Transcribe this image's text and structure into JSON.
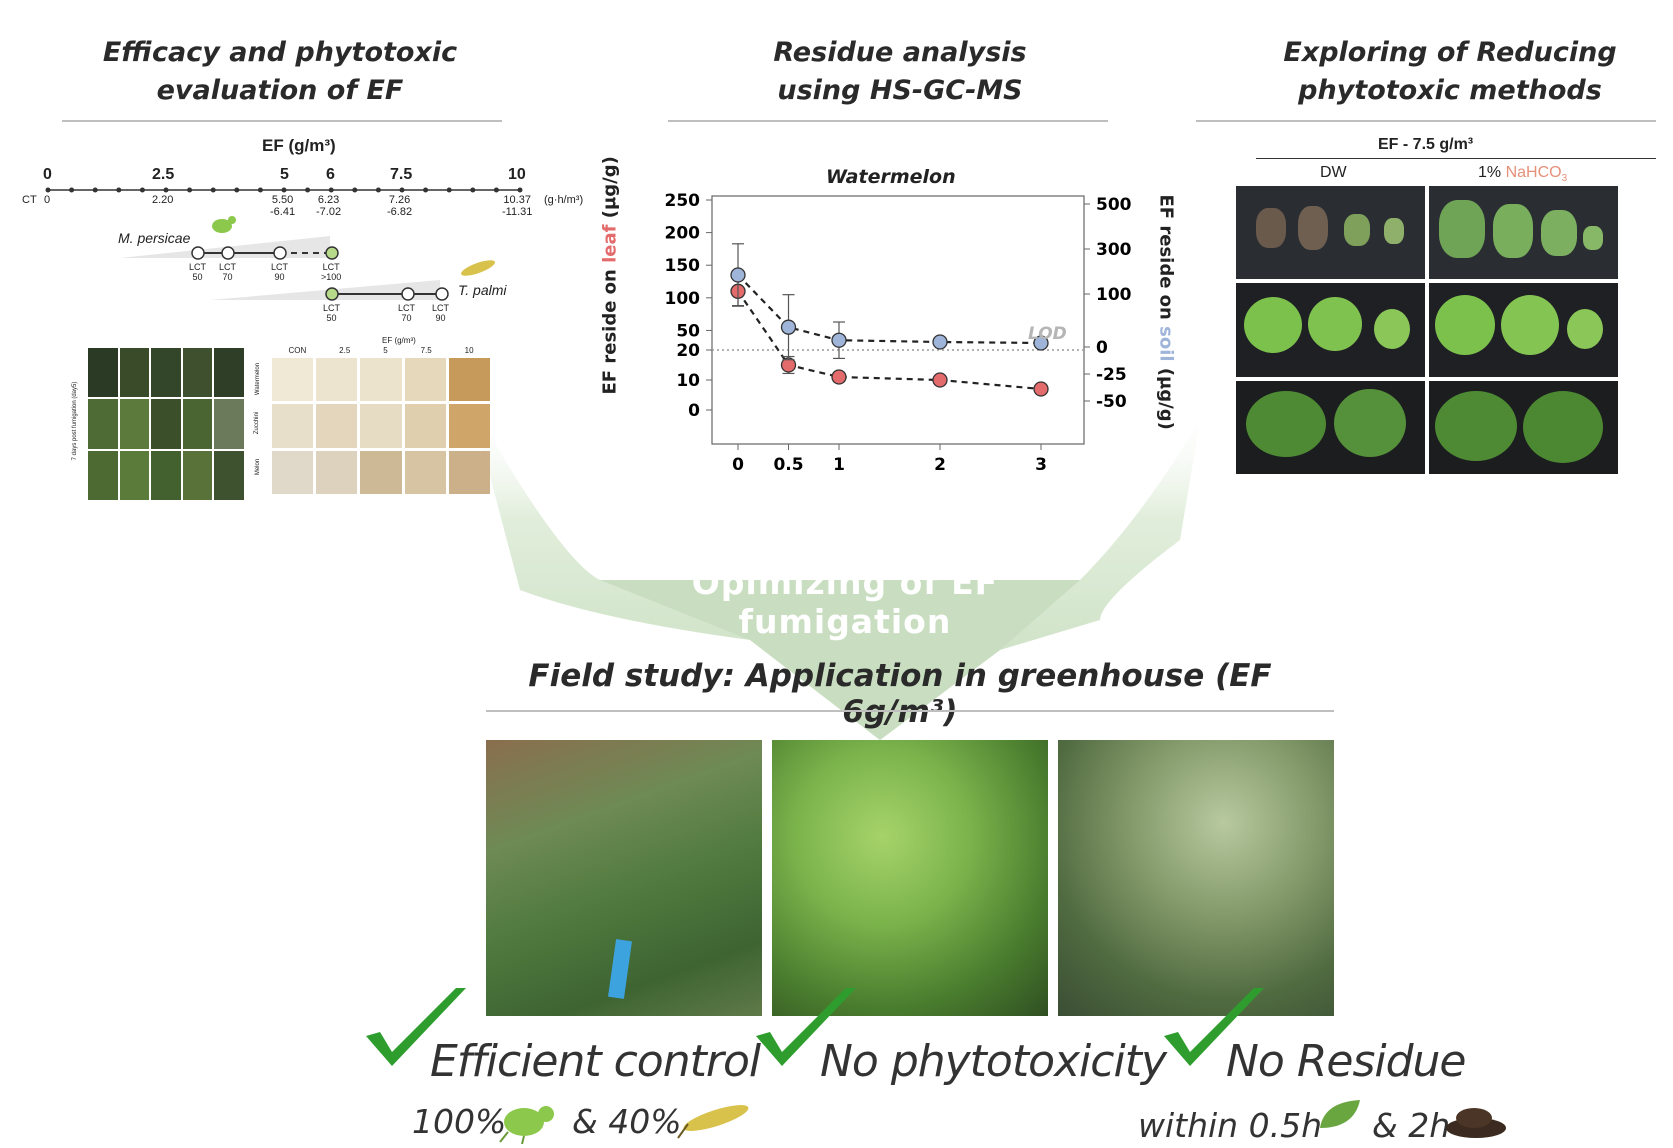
{
  "sections": {
    "efficacy": {
      "line1": "Efficacy and phytotoxic",
      "line2": "evaluation of EF"
    },
    "residue": {
      "line1": "Residue analysis",
      "line2": "using HS-GC-MS"
    },
    "reducing": {
      "line1": "Exploring of Reducing",
      "line2": "phytotoxic methods"
    }
  },
  "dose_scale": {
    "title": "EF (g/m³)",
    "doses": [
      "0",
      "2.5",
      "5",
      "6",
      "7.5",
      "10"
    ],
    "ct_label": "CT",
    "ct_unit": "(g·h/m³)",
    "ct_values": [
      {
        "top": "0",
        "bottom": ""
      },
      {
        "top": "2.20",
        "bottom": ""
      },
      {
        "top": "5.50",
        "bottom": "-6.41"
      },
      {
        "top": "6.23",
        "bottom": "-7.02"
      },
      {
        "top": "7.26",
        "bottom": "-6.82"
      },
      {
        "top": "10.37",
        "bottom": "-11.31"
      }
    ],
    "pest1": {
      "name": "M. persicae",
      "lct": [
        "LCT\n50",
        "LCT\n70",
        "LCT\n90",
        "LCT\n>100"
      ]
    },
    "pest2": {
      "name": "T. palmi",
      "lct": [
        "LCT\n50",
        "LCT\n70",
        "LCT\n90"
      ]
    }
  },
  "phyto_grid": {
    "header": "EF (g/m³)",
    "cols": [
      "CON",
      "2.5",
      "5",
      "7.5",
      "10"
    ],
    "rows": [
      "Watermelon",
      "Zucchini",
      "Melon"
    ],
    "side_label": "7 days post fumigation (day5)"
  },
  "chart_data": {
    "type": "scatter",
    "title": "Watermelon",
    "xlabel": "",
    "ylabel_left": {
      "pre": "EF reside on ",
      "highlight": "leaf",
      "post": " (μg/g)"
    },
    "ylabel_right": {
      "pre": "EF reside on ",
      "highlight": "soil",
      "post": " (μg/g)"
    },
    "x_ticks": [
      "0",
      "0.5",
      "1",
      "2",
      "3"
    ],
    "y_left_ticks_upper": [
      "250",
      "200",
      "150",
      "100",
      "50",
      "20"
    ],
    "y_left_ticks_lower": [
      "10",
      "0"
    ],
    "y_right_ticks_upper": [
      "500",
      "300",
      "100"
    ],
    "y_right_ticks_lower": [
      "0",
      "-25",
      "-50"
    ],
    "lod_label": "LOD",
    "series": [
      {
        "name": "leaf",
        "color": "#e36b6b",
        "points": [
          {
            "x": 0,
            "y": 110,
            "err": 22
          },
          {
            "x": 0.5,
            "y": 15,
            "err": 13
          },
          {
            "x": 1,
            "y": 11,
            "err": 7
          },
          {
            "x": 2,
            "y": 10,
            "err": 0
          },
          {
            "x": 3,
            "y": 7,
            "err": 5
          }
        ]
      },
      {
        "name": "soil",
        "color": "#9fb4d9",
        "points": [
          {
            "x": 0,
            "y": 135,
            "err": 48
          },
          {
            "x": 0.5,
            "y": 55,
            "err": 50
          },
          {
            "x": 1,
            "y": 35,
            "err": 28
          },
          {
            "x": 2,
            "y": 0,
            "err": 0
          },
          {
            "x": 3,
            "y": 0,
            "err": 0
          }
        ]
      }
    ]
  },
  "reduce_panel": {
    "header": "EF - 7.5 g/m³",
    "col1": "DW",
    "col2_pre": "1% ",
    "col2_chem": "NaHCO",
    "col2_sub": "3"
  },
  "funnel_text": "Opimizing of EF fumigation",
  "field": {
    "title": "Field study: Application in greenhouse (EF 6g/m³)"
  },
  "results": {
    "r1": "Efficient control",
    "r2": "No phytotoxicity",
    "r3": "No Residue",
    "r1_sub_a": "100%",
    "r1_sub_b": "& 40%",
    "r3_sub_a": "within 0.5h",
    "r3_sub_b": "& 2h"
  },
  "colors": {
    "check": "#2e9d2e",
    "leaf_series": "#e36b6b",
    "soil_series": "#9fb4d9",
    "nahco3": "#e6907a",
    "funnel": "#cfe2c8"
  }
}
